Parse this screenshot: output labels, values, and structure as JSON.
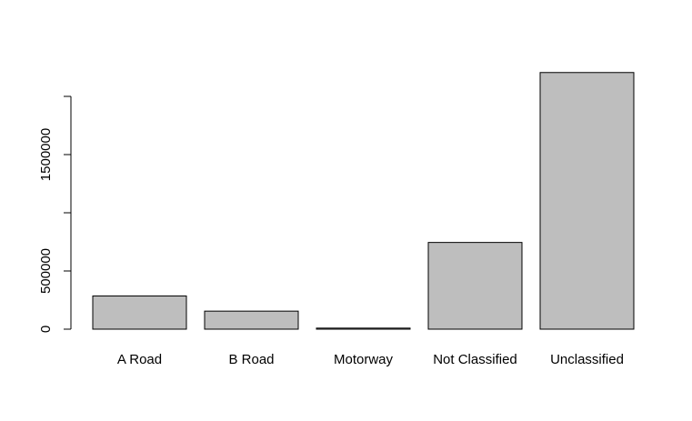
{
  "chart_data": {
    "type": "bar",
    "categories": [
      "A Road",
      "B Road",
      "Motorway",
      "Not Classified",
      "Unclassified"
    ],
    "values": [
      285000,
      155000,
      9000,
      745000,
      2205000
    ],
    "ylim": [
      0,
      2205000
    ],
    "yticks": [
      0,
      500000,
      1000000,
      1500000,
      2000000
    ],
    "ytick_labels": [
      "0",
      "500000",
      "",
      "1500000",
      ""
    ],
    "bar_color": "#bebebe",
    "grid": false,
    "legend": false
  }
}
